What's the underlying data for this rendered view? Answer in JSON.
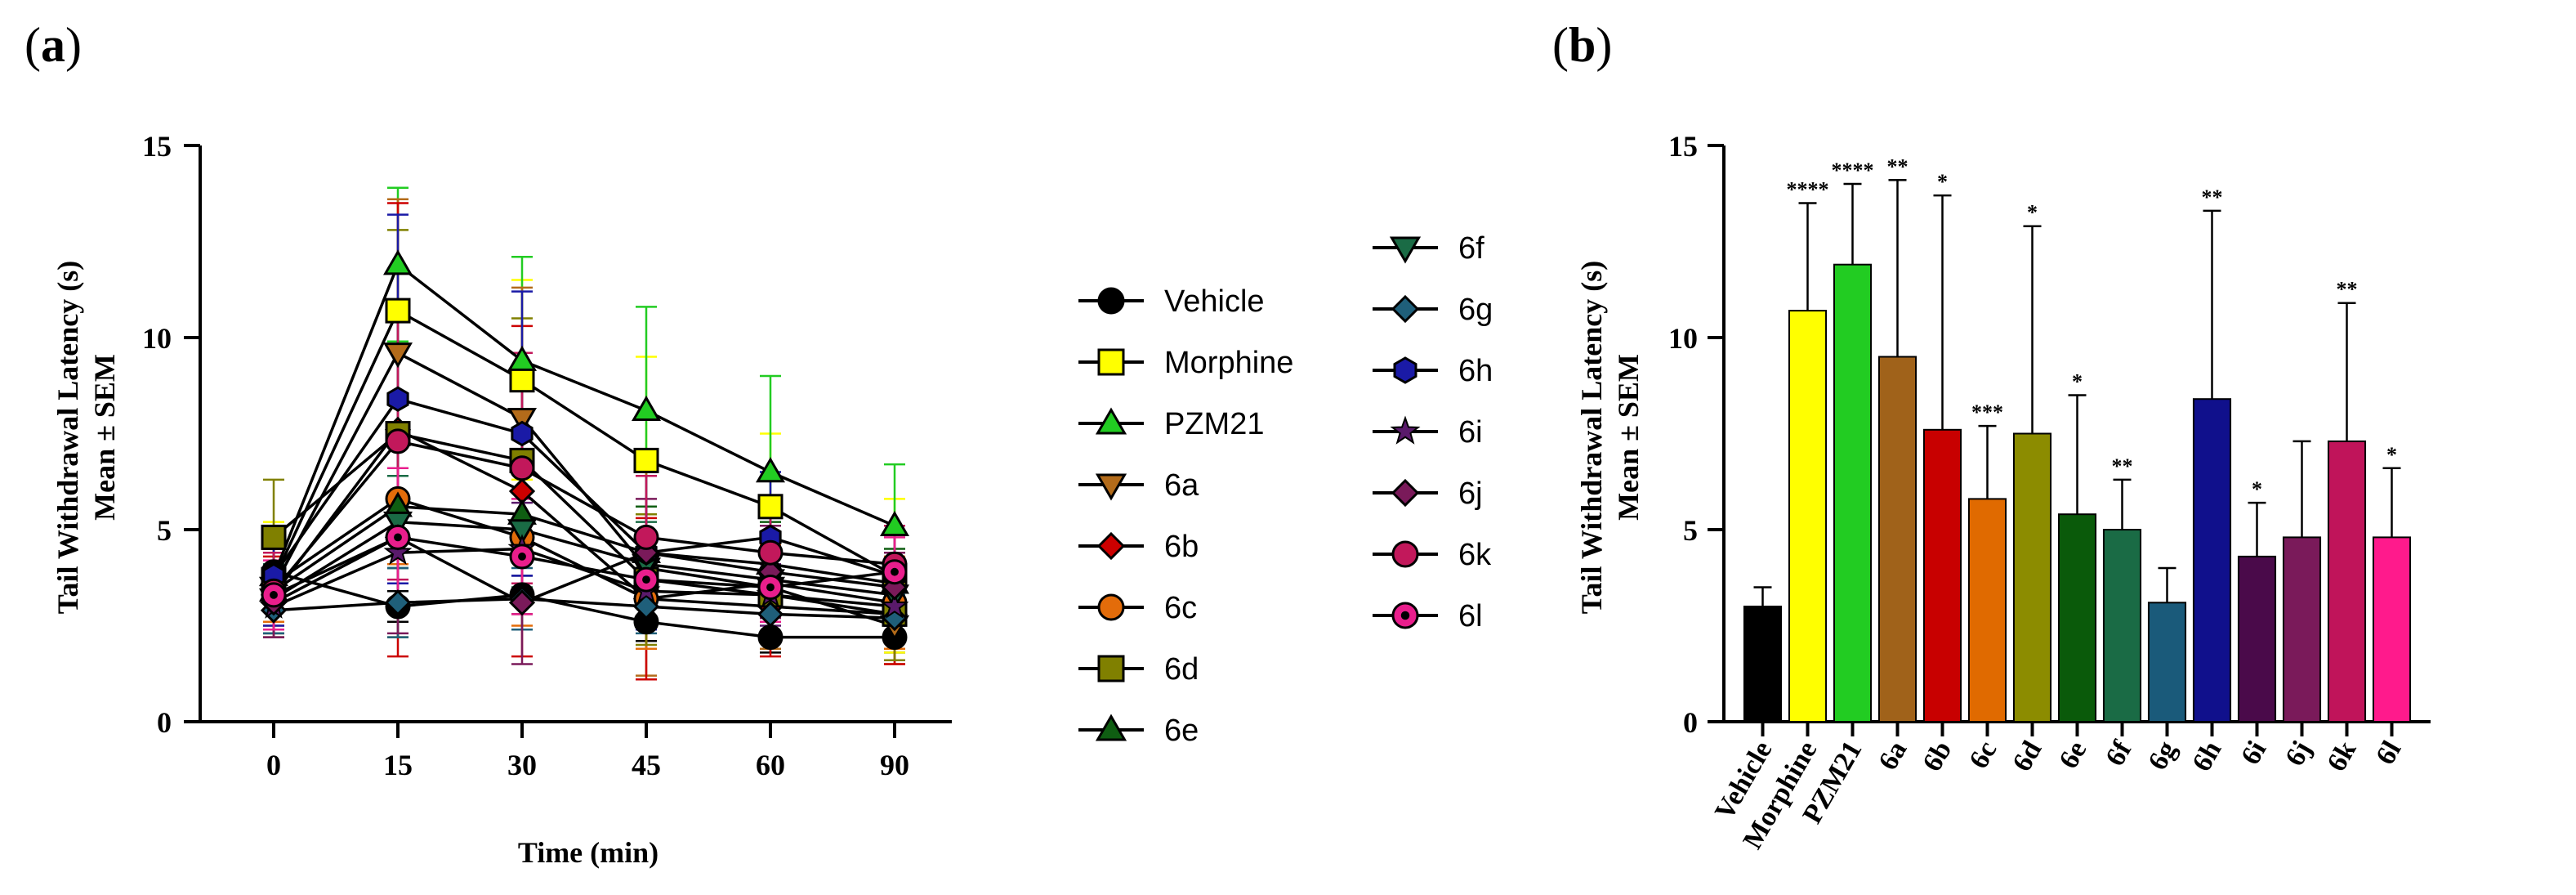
{
  "panel_a_label": "a",
  "panel_b_label": "b",
  "chart_data": [
    {
      "type": "line",
      "panel": "a",
      "xlabel": "Time (min)",
      "ylabel": "Tail Withdrawal Latency (s)",
      "ylabel2": "Mean ± SEM",
      "categories": [
        "0",
        "15",
        "30",
        "45",
        "60",
        "90"
      ],
      "yticks": [
        "0",
        "5",
        "10",
        "15"
      ],
      "ylim": [
        0,
        15
      ],
      "series": [
        {
          "name": "Vehicle",
          "color": "#000000",
          "marker": "circle",
          "values": [
            3.9,
            3.0,
            3.3,
            2.6,
            2.2,
            2.2
          ],
          "err": [
            0.5,
            0.4,
            0.5,
            0.5,
            0.4,
            0.4
          ]
        },
        {
          "name": "Morphine",
          "color": "#ffff00",
          "marker": "square",
          "values": [
            3.7,
            10.7,
            8.9,
            6.8,
            5.6,
            3.8
          ],
          "err": [
            1.5,
            2.9,
            2.6,
            2.7,
            1.9,
            2.0
          ]
        },
        {
          "name": "PZM21",
          "color": "#22cc22",
          "marker": "triangle",
          "values": [
            3.8,
            11.9,
            9.4,
            8.1,
            6.5,
            5.1
          ],
          "err": [
            1.2,
            2.0,
            2.7,
            2.7,
            2.5,
            1.6
          ]
        },
        {
          "name": "6a",
          "color": "#b36b1a",
          "marker": "tri-down",
          "values": [
            3.5,
            9.6,
            7.9,
            4.0,
            3.5,
            2.5
          ],
          "err": [
            1.0,
            4.0,
            3.4,
            2.8,
            1.6,
            1.0
          ]
        },
        {
          "name": "6b",
          "color": "#cc0000",
          "marker": "diamond",
          "values": [
            3.3,
            7.6,
            6.0,
            3.2,
            3.0,
            2.8
          ],
          "err": [
            1.0,
            5.9,
            4.3,
            2.1,
            1.3,
            1.3
          ]
        },
        {
          "name": "6c",
          "color": "#e36c0a",
          "marker": "circle",
          "values": [
            3.6,
            5.8,
            4.8,
            3.2,
            3.6,
            3.1
          ],
          "err": [
            1.0,
            1.7,
            2.3,
            1.3,
            1.0,
            1.2
          ]
        },
        {
          "name": "6d",
          "color": "#808000",
          "marker": "square",
          "values": [
            4.8,
            7.5,
            6.8,
            3.7,
            3.3,
            2.8
          ],
          "err": [
            1.5,
            5.3,
            3.7,
            1.7,
            1.2,
            1.2
          ]
        },
        {
          "name": "6e",
          "color": "#0f5e12",
          "marker": "triangle",
          "values": [
            3.4,
            5.6,
            5.4,
            4.4,
            4.1,
            3.6
          ],
          "err": [
            1.0,
            1.6,
            2.0,
            1.2,
            1.1,
            0.9
          ]
        },
        {
          "name": "6f",
          "color": "#1a6b45",
          "marker": "tri-down",
          "values": [
            3.2,
            5.2,
            5.0,
            4.1,
            3.7,
            3.3
          ],
          "err": [
            0.9,
            1.2,
            1.5,
            1.1,
            1.0,
            0.8
          ]
        },
        {
          "name": "6g",
          "color": "#1f5f7a",
          "marker": "diamond",
          "values": [
            2.9,
            3.1,
            3.2,
            3.0,
            2.8,
            2.7
          ],
          "err": [
            0.6,
            0.9,
            0.8,
            0.7,
            0.6,
            0.6
          ]
        },
        {
          "name": "6h",
          "color": "#1a1aa6",
          "marker": "hexagon",
          "values": [
            3.8,
            8.4,
            7.5,
            4.4,
            4.8,
            3.8
          ],
          "err": [
            1.3,
            4.8,
            3.7,
            2.0,
            1.7,
            1.3
          ]
        },
        {
          "name": "6i",
          "color": "#5a1a6b",
          "marker": "star",
          "values": [
            3.0,
            4.4,
            4.5,
            3.4,
            3.3,
            3.0
          ],
          "err": [
            0.8,
            1.3,
            1.2,
            0.9,
            0.8,
            0.7
          ]
        },
        {
          "name": "6j",
          "color": "#7a1a5a",
          "marker": "diamond",
          "values": [
            3.1,
            4.8,
            3.1,
            4.4,
            3.9,
            3.5
          ],
          "err": [
            0.9,
            2.5,
            1.6,
            1.4,
            1.2,
            0.9
          ]
        },
        {
          "name": "6k",
          "color": "#c2185b",
          "marker": "circle",
          "values": [
            3.4,
            7.3,
            6.6,
            4.8,
            4.4,
            4.1
          ],
          "err": [
            1.0,
            3.6,
            3.0,
            1.6,
            1.3,
            1.0
          ]
        },
        {
          "name": "6l",
          "color": "#e91e8c",
          "marker": "dot-circle",
          "values": [
            3.3,
            4.8,
            4.3,
            3.7,
            3.5,
            3.9
          ],
          "err": [
            0.9,
            1.8,
            1.5,
            1.0,
            0.9,
            0.9
          ]
        }
      ]
    },
    {
      "type": "bar",
      "panel": "b",
      "xlabel": "",
      "ylabel": "Tail Withdrawal Latency (s)",
      "ylabel2": "Mean ± SEM",
      "categories": [
        "Vehicle",
        "Morphine",
        "PZM21",
        "6a",
        "6b",
        "6c",
        "6d",
        "6e",
        "6f",
        "6g",
        "6h",
        "6i",
        "6j",
        "6k",
        "6l"
      ],
      "values": [
        3.0,
        10.7,
        11.9,
        9.5,
        7.6,
        5.8,
        7.5,
        5.4,
        5.0,
        3.1,
        8.4,
        4.3,
        4.8,
        7.3,
        4.8
      ],
      "err": [
        0.5,
        2.8,
        2.1,
        4.6,
        6.1,
        1.9,
        5.4,
        3.1,
        1.3,
        0.9,
        4.9,
        1.4,
        2.5,
        3.6,
        1.8
      ],
      "significance": [
        "",
        "****",
        "****",
        "**",
        "*",
        "***",
        "*",
        "*",
        "**",
        "",
        "**",
        "*",
        "",
        "**",
        "*"
      ],
      "colors": [
        "#000000",
        "#ffff00",
        "#22cc22",
        "#a0621a",
        "#c80000",
        "#e06a00",
        "#8c8c00",
        "#0a5a0a",
        "#1a6b45",
        "#1a5a7a",
        "#10108c",
        "#4a0a4a",
        "#7a1a5a",
        "#c0145a",
        "#ff1a8c"
      ],
      "yticks": [
        "0",
        "5",
        "10",
        "15"
      ],
      "ylim": [
        0,
        15
      ]
    }
  ]
}
